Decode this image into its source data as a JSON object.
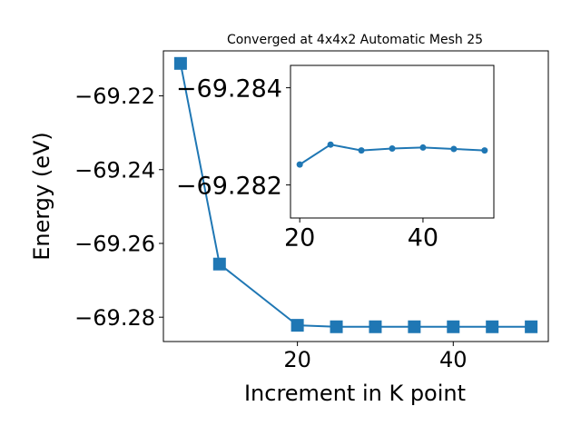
{
  "chart_data": [
    {
      "type": "line",
      "title": "Converged at 4x4x2 Automatic Mesh 25",
      "xlabel": "Increment in K point",
      "ylabel": "Energy (eV)",
      "xlim": [
        2.8,
        52.2
      ],
      "ylim": [
        -69.2866,
        -69.2078
      ],
      "xticks": [
        20,
        40
      ],
      "xtick_labels": [
        "20",
        "40"
      ],
      "yticks": [
        -69.28,
        -69.26,
        -69.24,
        -69.22
      ],
      "ytick_labels": [
        "−69.28",
        "−69.26",
        "−69.24",
        "−69.22"
      ],
      "grid": false,
      "marker": "square",
      "color": "#1f77b4",
      "series": [
        {
          "x": [
            5,
            10,
            20,
            25,
            30,
            35,
            40,
            45,
            50
          ],
          "y": [
            -69.2112,
            -69.2656,
            -69.2822,
            -69.2826,
            -69.2826,
            -69.2826,
            -69.2826,
            -69.2826,
            -69.2826
          ]
        }
      ]
    },
    {
      "type": "line",
      "title": "",
      "xlim": [
        18.5,
        51.5
      ],
      "ylim": [
        -69.28132,
        -69.28446
      ],
      "xticks": [
        20,
        40
      ],
      "xtick_labels": [
        "20",
        "40"
      ],
      "yticks": [
        -69.282,
        -69.284
      ],
      "ytick_labels": [
        "−69.282",
        "−69.284"
      ],
      "grid": false,
      "marker": "circle",
      "color": "#1f77b4",
      "series": [
        {
          "x": [
            20,
            25,
            30,
            35,
            40,
            45,
            50
          ],
          "y": [
            -69.28242,
            -69.28283,
            -69.28271,
            -69.28275,
            -69.28277,
            -69.28274,
            -69.28271
          ]
        }
      ]
    }
  ]
}
